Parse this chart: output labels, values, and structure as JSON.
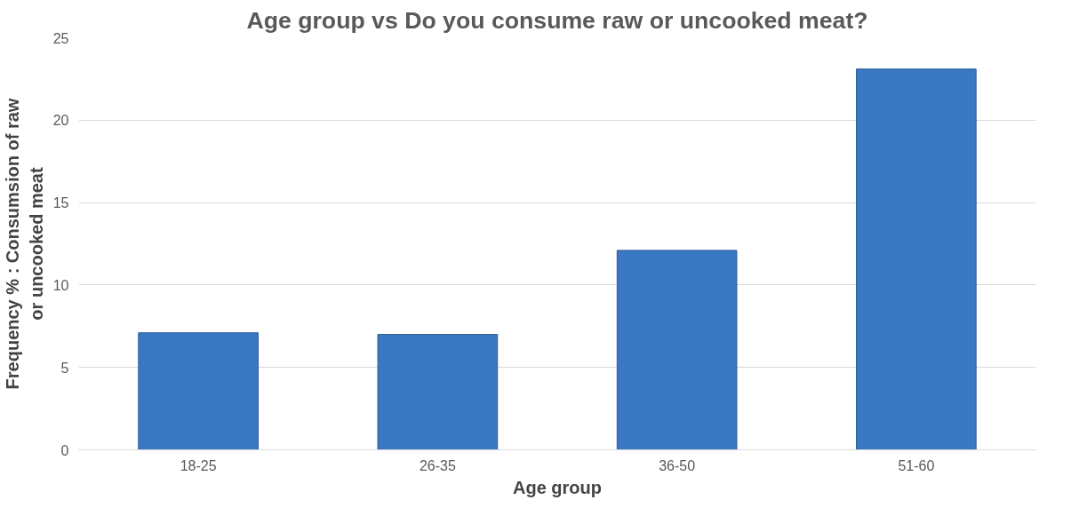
{
  "chart_data": {
    "type": "bar",
    "title": "Age group vs Do you consume raw or uncooked meat?",
    "xlabel": "Age group",
    "ylabel": "Frequency % : Consumsion of raw or uncooked meat",
    "categories": [
      "18-25",
      "26-35",
      "36-50",
      "51-60"
    ],
    "values": [
      7.1,
      7.0,
      12.1,
      23.1
    ],
    "color": "#3a78c3",
    "ylim": [
      0,
      25
    ],
    "yticks": [
      0,
      5,
      10,
      15,
      20,
      25
    ],
    "grid": "y"
  }
}
